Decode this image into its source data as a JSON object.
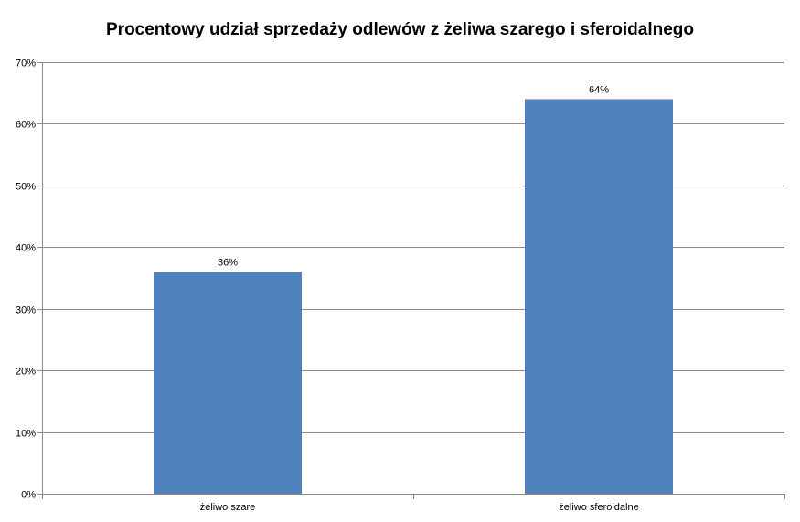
{
  "chart_data": {
    "type": "bar",
    "title": "Procentowy udział sprzedaży odlewów z żeliwa szarego i sferoidalnego",
    "xlabel": "",
    "ylabel": "",
    "categories": [
      "żeliwo szare",
      "żeliwo sferoidalne"
    ],
    "values": [
      36,
      64
    ],
    "data_labels": [
      "36%",
      "64%"
    ],
    "y_ticks": [
      "0%",
      "10%",
      "20%",
      "30%",
      "40%",
      "50%",
      "60%",
      "70%"
    ],
    "ylim": [
      0,
      70
    ],
    "grid": true,
    "legend": "none",
    "bar_color": "#4f81bd"
  }
}
